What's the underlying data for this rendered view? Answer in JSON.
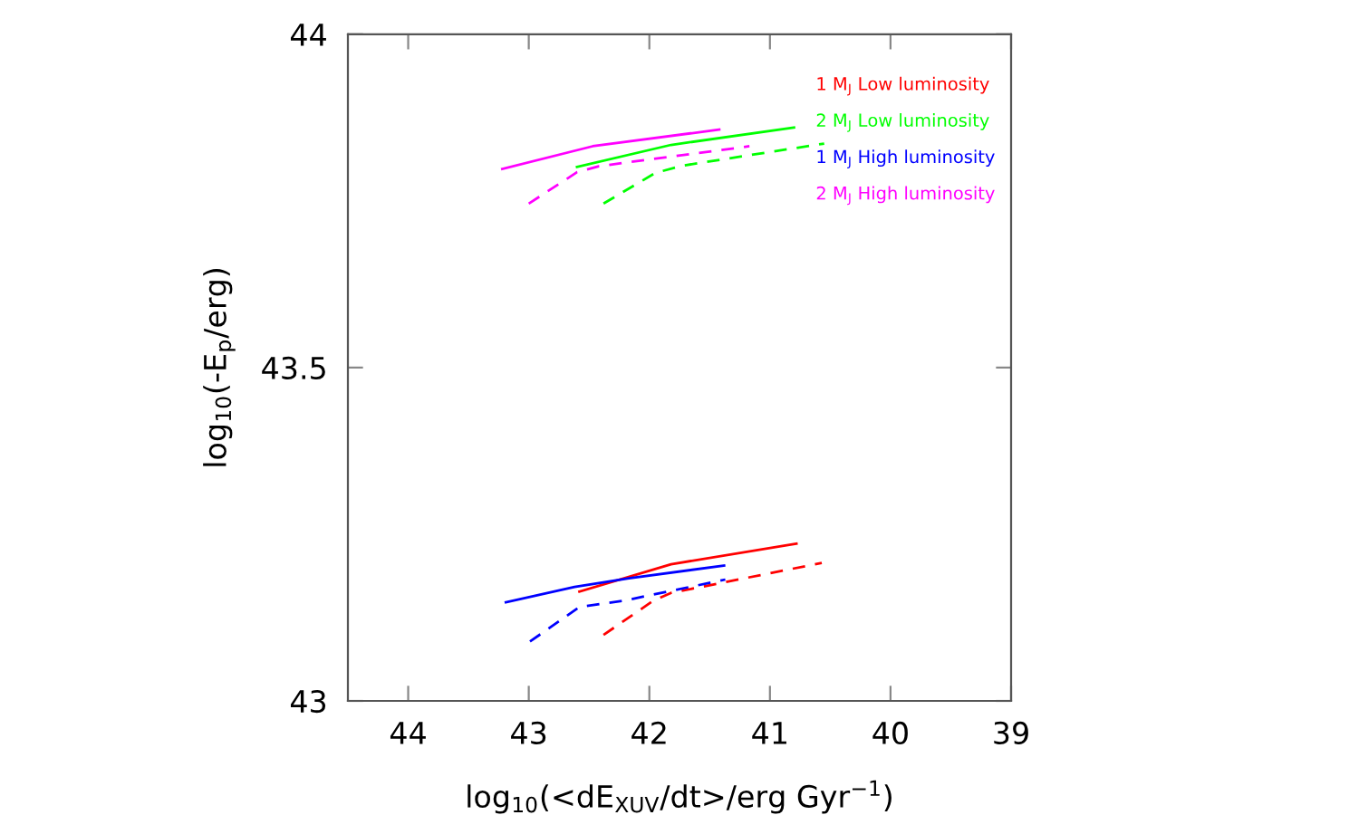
{
  "chart_data": {
    "type": "line",
    "xlabel": "log$_{10}$(<dE$_{XUV}$/dt>/erg Gyr$^{−1}$)",
    "ylabel": "log$_{10}$(-E$_{p}$/erg)",
    "xlim": [
      44.5,
      39
    ],
    "xticks": [
      44,
      43,
      42,
      41,
      40,
      39
    ],
    "ylim": [
      43,
      44
    ],
    "yticks": [
      43,
      {
        "value": 43.5,
        "label": "43.5"
      },
      44
    ],
    "grid": false,
    "legend": "top right",
    "marker": "none",
    "series": [
      {
        "name": "1 M$_{J}$ Low luminosity",
        "color": "#ff0000",
        "line_style": "solid",
        "x": [
          42.58,
          41.82,
          40.78
        ],
        "values": [
          43.164,
          43.205,
          43.236
        ]
      },
      {
        "name": "2 M$_{J}$ Low luminosity",
        "color": "#00ff00",
        "line_style": "solid",
        "x": [
          42.6,
          41.82,
          40.8
        ],
        "values": [
          43.801,
          43.834,
          43.86
        ]
      },
      {
        "name": "1 M$_{J}$ High luminosity",
        "color": "#0000ff",
        "line_style": "solid",
        "x": [
          43.19,
          42.62,
          42.17,
          41.38
        ],
        "values": [
          43.148,
          43.171,
          43.184,
          43.203
        ]
      },
      {
        "name": "2 M$_{J}$ High luminosity",
        "color": "#ff00ff",
        "line_style": "solid",
        "x": [
          43.22,
          42.47,
          41.42
        ],
        "values": [
          43.798,
          43.832,
          43.857
        ]
      },
      {
        "color": "#ff0000",
        "line_style": "dashed",
        "x": [
          42.38,
          41.97,
          41.82,
          40.57
        ],
        "values": [
          43.099,
          43.15,
          43.162,
          43.207
        ]
      },
      {
        "color": "#00ff00",
        "line_style": "dashed",
        "x": [
          42.38,
          41.95,
          41.72,
          40.55
        ],
        "values": [
          43.746,
          43.792,
          43.803,
          43.836
        ]
      },
      {
        "color": "#0000ff",
        "line_style": "dashed",
        "x": [
          42.99,
          42.58,
          42.22,
          41.37
        ],
        "values": [
          43.089,
          43.141,
          43.15,
          43.182
        ]
      },
      {
        "color": "#ff00ff",
        "line_style": "dashed",
        "x": [
          43.0,
          42.6,
          42.42,
          41.17
        ],
        "values": [
          43.746,
          43.793,
          43.802,
          43.832
        ]
      }
    ]
  }
}
